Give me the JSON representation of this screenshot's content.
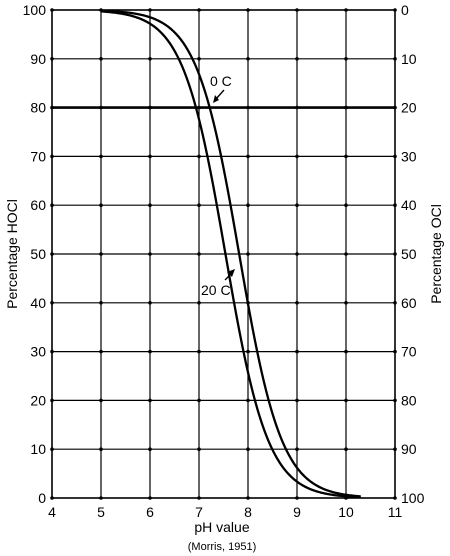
{
  "chart_data": {
    "type": "line",
    "title": "",
    "xlabel": "pH value",
    "ylabel_left": "Percentage HOCl",
    "ylabel_right": "Percentage OCl",
    "source": "(Morris, 1951)",
    "xlim": [
      4,
      11
    ],
    "ylim_left": [
      0,
      100
    ],
    "ylim_right": [
      100,
      0
    ],
    "x_ticks": [
      "4",
      "5",
      "6",
      "7",
      "8",
      "9",
      "10",
      "11"
    ],
    "y_ticks_left": [
      "0",
      "10",
      "20",
      "30",
      "40",
      "50",
      "60",
      "70",
      "80",
      "90",
      "100"
    ],
    "y_ticks_right": [
      "100",
      "90",
      "80",
      "70",
      "60",
      "50",
      "40",
      "30",
      "20",
      "10",
      "0"
    ],
    "grid": true,
    "highlight_line_y": 80,
    "series": [
      {
        "name": "0 C",
        "pKa": 7.82,
        "x": [
          5.0,
          5.5,
          6.0,
          6.5,
          7.0,
          7.5,
          7.8,
          8.0,
          8.5,
          9.0,
          9.5,
          10.0,
          10.3
        ],
        "values": [
          99.8,
          99.5,
          98.5,
          95.5,
          87,
          68,
          51,
          40,
          17,
          6,
          2,
          0.5,
          0
        ]
      },
      {
        "name": "20 C",
        "pKa": 7.54,
        "x": [
          5.0,
          5.5,
          6.0,
          6.5,
          7.0,
          7.5,
          7.8,
          8.0,
          8.5,
          9.0,
          9.5,
          10.0,
          10.3
        ],
        "values": [
          99.7,
          99.1,
          97,
          91.5,
          77.5,
          52,
          35,
          26,
          10,
          3,
          1,
          0.3,
          0
        ]
      }
    ],
    "annotations": [
      {
        "label": "0 C",
        "series": "0 C"
      },
      {
        "label": "20 C",
        "series": "20 C"
      }
    ]
  }
}
